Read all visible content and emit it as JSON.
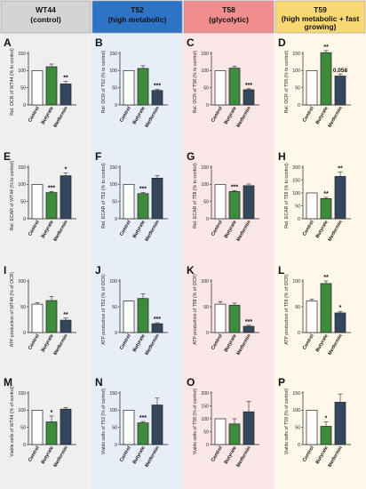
{
  "columns": [
    {
      "title": "WT44",
      "subtitle": "(control)",
      "bg": "#efefef",
      "header_bg": "#d4d4d4"
    },
    {
      "title": "T52",
      "subtitle": "(high metabolic)",
      "bg": "#e7eef7",
      "header_bg": "#2e74c6"
    },
    {
      "title": "T58",
      "subtitle": "(glycolytic)",
      "bg": "#fbe7e7",
      "header_bg": "#f08e8e"
    },
    {
      "title": "T59",
      "subtitle": "(high metabolic + fast growing)",
      "bg": "#fdf8ea",
      "header_bg": "#f8d873"
    }
  ],
  "categories": [
    "Control",
    "Butyrate",
    "Metformin"
  ],
  "bar_colors": [
    "#ffffff",
    "#3f8b3d",
    "#34475d"
  ],
  "chart_data": [
    {
      "letter": "A",
      "type": "bar",
      "ylabel": "Rel. OCR of WT44 (% to control)",
      "ylim": [
        0,
        150
      ],
      "yticks": [
        0,
        50,
        100,
        150
      ],
      "values": [
        100,
        111,
        61
      ],
      "errors": [
        0,
        8,
        7
      ],
      "annotations": [
        "",
        "",
        "**"
      ]
    },
    {
      "letter": "B",
      "type": "bar",
      "ylabel": "Rel. OCR of T52 (% to control)",
      "ylim": [
        0,
        150
      ],
      "yticks": [
        0,
        50,
        100,
        150
      ],
      "values": [
        100,
        106,
        42
      ],
      "errors": [
        0,
        8,
        3
      ],
      "annotations": [
        "",
        "",
        "***"
      ]
    },
    {
      "letter": "C",
      "type": "bar",
      "ylabel": "Rel. OCR of T58 (% to control)",
      "ylim": [
        0,
        150
      ],
      "yticks": [
        0,
        50,
        100,
        150
      ],
      "values": [
        100,
        107,
        44
      ],
      "errors": [
        0,
        5,
        3
      ],
      "annotations": [
        "",
        "",
        "***"
      ]
    },
    {
      "letter": "D",
      "type": "bar",
      "ylabel": "Rel. OCR of T59 (% to control)",
      "ylim": [
        0,
        150
      ],
      "yticks": [
        0,
        50,
        100,
        150
      ],
      "values": [
        100,
        152,
        84
      ],
      "errors": [
        0,
        6,
        6
      ],
      "annotations": [
        "",
        "**",
        "0.058"
      ]
    },
    {
      "letter": "E",
      "type": "bar",
      "ylabel": "Rel. ECAR of WT44 (% to control)",
      "ylim": [
        0,
        150
      ],
      "yticks": [
        0,
        50,
        100,
        150
      ],
      "values": [
        100,
        76,
        125
      ],
      "errors": [
        0,
        3,
        8
      ],
      "annotations": [
        "",
        "***",
        "*"
      ]
    },
    {
      "letter": "F",
      "type": "bar",
      "ylabel": "Rel. ECAR of T52 (% to control)",
      "ylim": [
        0,
        150
      ],
      "yticks": [
        0,
        50,
        100,
        150
      ],
      "values": [
        100,
        73,
        118
      ],
      "errors": [
        0,
        3,
        7
      ],
      "annotations": [
        "",
        "***",
        ""
      ]
    },
    {
      "letter": "G",
      "type": "bar",
      "ylabel": "Rel. ECAR of T58 (% to control)",
      "ylim": [
        0,
        150
      ],
      "yticks": [
        0,
        50,
        100,
        150
      ],
      "values": [
        100,
        79,
        96
      ],
      "errors": [
        0,
        3,
        5
      ],
      "annotations": [
        "",
        "***",
        ""
      ]
    },
    {
      "letter": "H",
      "type": "bar",
      "ylabel": "Rel. ECAR of T59 (% to control)",
      "ylim": [
        0,
        200
      ],
      "yticks": [
        0,
        50,
        100,
        150,
        200
      ],
      "values": [
        100,
        78,
        164
      ],
      "errors": [
        0,
        5,
        17
      ],
      "annotations": [
        "",
        "**",
        "**"
      ]
    },
    {
      "letter": "I",
      "type": "bar",
      "ylabel": "ATP production of WT44 (% of OCR)",
      "ylim": [
        0,
        100
      ],
      "yticks": [
        0,
        50,
        100
      ],
      "values": [
        55,
        62,
        24
      ],
      "errors": [
        3,
        8,
        4
      ],
      "annotations": [
        "",
        "",
        "**"
      ]
    },
    {
      "letter": "J",
      "type": "bar",
      "ylabel": "ATP production of T52 (% of OCR)",
      "ylim": [
        0,
        100
      ],
      "yticks": [
        0,
        50,
        100
      ],
      "values": [
        61,
        66,
        17
      ],
      "errors": [
        0,
        9,
        2
      ],
      "annotations": [
        "",
        "",
        "***"
      ]
    },
    {
      "letter": "K",
      "type": "bar",
      "ylabel": "ATP production of T58 (% of OCR)",
      "ylim": [
        0,
        100
      ],
      "yticks": [
        0,
        50,
        100
      ],
      "values": [
        55,
        53,
        12
      ],
      "errors": [
        5,
        4,
        2
      ],
      "annotations": [
        "",
        "",
        "***"
      ]
    },
    {
      "letter": "L",
      "type": "bar",
      "ylabel": "ATP production of T59 (% of OCR)",
      "ylim": [
        0,
        100
      ],
      "yticks": [
        0,
        50,
        100
      ],
      "values": [
        61,
        95,
        38
      ],
      "errors": [
        4,
        5,
        3
      ],
      "annotations": [
        "",
        "**",
        "*"
      ]
    },
    {
      "letter": "M",
      "type": "bar",
      "ylabel": "Viable cells of WT44 (% of control)",
      "ylim": [
        0,
        150
      ],
      "yticks": [
        0,
        50,
        100,
        150
      ],
      "values": [
        100,
        66,
        103
      ],
      "errors": [
        0,
        17,
        5
      ],
      "annotations": [
        "",
        "*",
        ""
      ]
    },
    {
      "letter": "N",
      "type": "bar",
      "ylabel": "Viable cells of T52 (% of control)",
      "ylim": [
        0,
        150
      ],
      "yticks": [
        0,
        50,
        100,
        150
      ],
      "values": [
        100,
        63,
        115
      ],
      "errors": [
        0,
        4,
        20
      ],
      "annotations": [
        "",
        "***",
        ""
      ]
    },
    {
      "letter": "O",
      "type": "bar",
      "ylabel": "Viable cells of T58 (% of control)",
      "ylim": [
        0,
        200
      ],
      "yticks": [
        0,
        50,
        100,
        150,
        200
      ],
      "values": [
        100,
        80,
        127
      ],
      "errors": [
        0,
        20,
        40
      ],
      "annotations": [
        "",
        "",
        ""
      ]
    },
    {
      "letter": "P",
      "type": "bar",
      "ylabel": "Viable cells of T59 (% of control)",
      "ylim": [
        0,
        150
      ],
      "yticks": [
        0,
        50,
        100,
        150
      ],
      "values": [
        100,
        53,
        123
      ],
      "errors": [
        0,
        13,
        24
      ],
      "annotations": [
        "",
        "*",
        ""
      ]
    }
  ]
}
